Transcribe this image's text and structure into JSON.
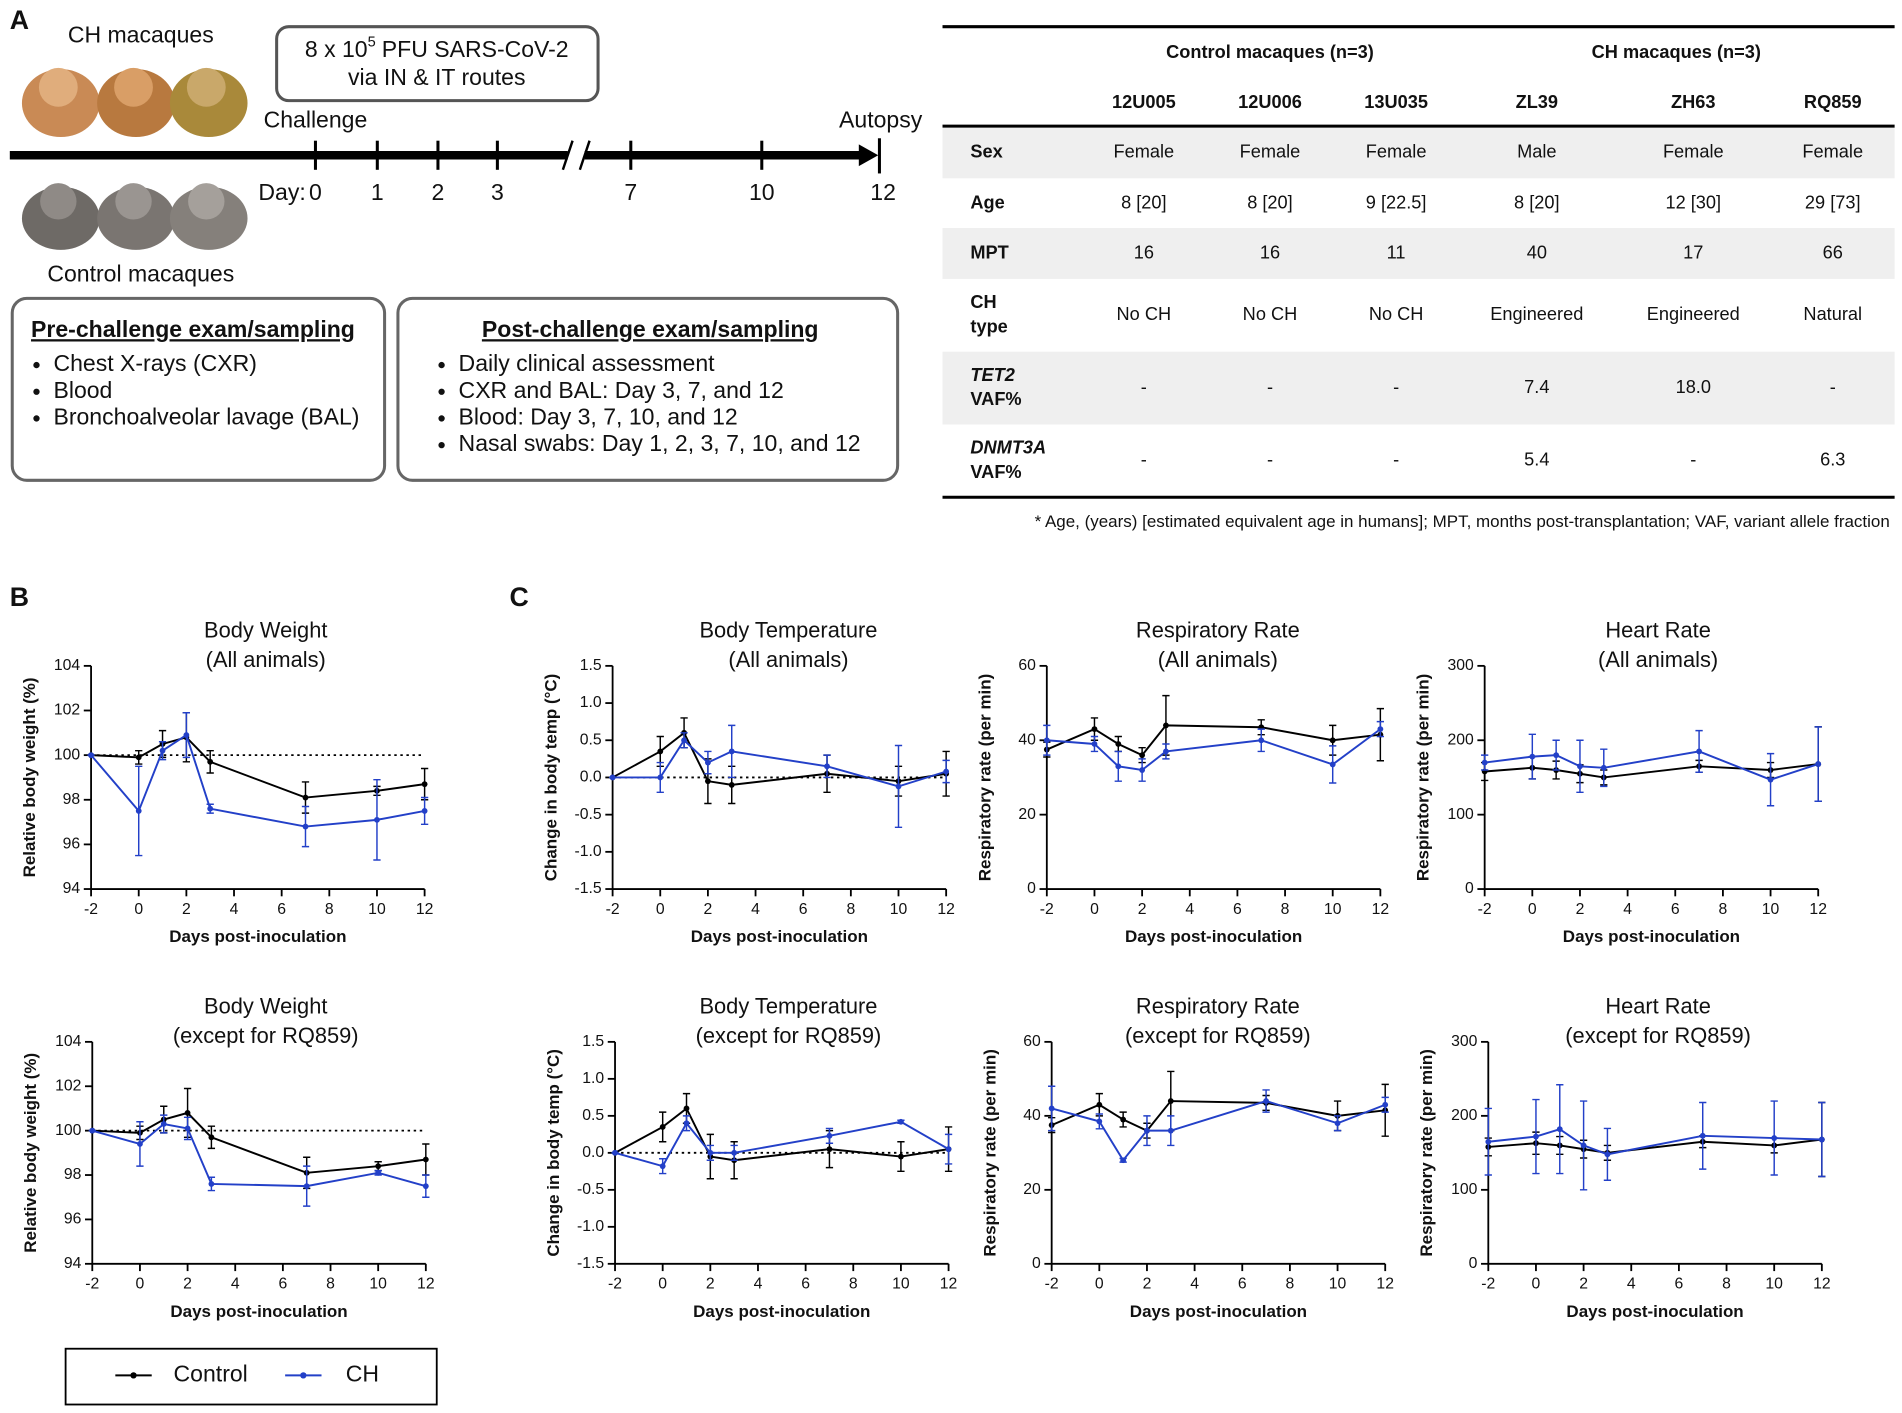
{
  "panels": [
    "A",
    "B",
    "C"
  ],
  "timeline": {
    "ch_group": "CH macaques",
    "control_group": "Control macaques",
    "inoculum": {
      "prefix": "8 x 10",
      "exponent": "5",
      "suffix": "PFU SARS-CoV-2",
      "route": "via IN & IT routes"
    },
    "start_label": "Challenge",
    "end_label": "Autopsy",
    "day_label": "Day:",
    "days": [
      0,
      1,
      2,
      3,
      7,
      10,
      12
    ],
    "pre": {
      "title": "Pre-challenge exam/sampling",
      "items": [
        "Chest X-rays (CXR)",
        "Blood",
        "Bronchoalveolar lavage (BAL)"
      ]
    },
    "post": {
      "title": "Post-challenge exam/sampling",
      "items": [
        "Daily clinical assessment",
        "CXR and BAL: Day 3, 7, and 12",
        "Blood: Day 3, 7, 10, and 12",
        "Nasal swabs: Day 1, 2, 3, 7, 10, and 12"
      ]
    }
  },
  "table": {
    "groups": [
      "Control macaques (n=3)",
      "CH macaques (n=3)"
    ],
    "columns": [
      "12U005",
      "12U006",
      "13U035",
      "ZL39",
      "ZH63",
      "RQ859"
    ],
    "rows": [
      {
        "label": [
          "Sex"
        ],
        "cells": [
          "Female",
          "Female",
          "Female",
          "Male",
          "Female",
          "Female"
        ]
      },
      {
        "label": [
          "Age"
        ],
        "cells": [
          "8 [20]",
          "8 [20]",
          "9 [22.5]",
          "8 [20]",
          "12 [30]",
          "29 [73]"
        ]
      },
      {
        "label": [
          "MPT"
        ],
        "cells": [
          "16",
          "16",
          "11",
          "40",
          "17",
          "66"
        ]
      },
      {
        "label": [
          "CH",
          "type"
        ],
        "cells": [
          "No CH",
          "No CH",
          "No CH",
          "Engineered",
          "Engineered",
          "Natural"
        ]
      },
      {
        "label": [
          "TET2",
          "VAF%"
        ],
        "label_italic": true,
        "cells": [
          "-",
          "-",
          "-",
          "7.4",
          "18.0",
          "-"
        ]
      },
      {
        "label": [
          "DNMT3A",
          "VAF%"
        ],
        "label_italic": true,
        "cells": [
          "-",
          "-",
          "-",
          "5.4",
          "-",
          "6.3"
        ]
      }
    ],
    "footnote": "* Age, (years) [estimated equivalent age in humans]; MPT, months post-transplantation; VAF, variant allele fraction"
  },
  "chart_data": [
    {
      "type": "line",
      "title": "Body Weight",
      "subtitle": "(All animals)",
      "ylabel": "Relative body weight (%)",
      "xlabel": "Days post-inoculation",
      "x": [
        -2,
        0,
        1,
        2,
        3,
        7,
        10,
        12
      ],
      "xlim": [
        -2,
        12
      ],
      "xticks": [
        -2,
        0,
        2,
        4,
        6,
        8,
        10,
        12
      ],
      "ylim": [
        94,
        104
      ],
      "yticks": [
        94,
        96,
        98,
        100,
        102,
        104
      ],
      "reference_line": 100,
      "series": [
        {
          "name": "Control",
          "color": "#000000",
          "values": [
            100,
            99.9,
            100.5,
            100.8,
            99.7,
            98.1,
            98.4,
            98.7
          ],
          "errors": [
            0,
            0.3,
            0.6,
            1.1,
            0.5,
            0.7,
            0.2,
            0.7
          ]
        },
        {
          "name": "CH",
          "color": "#2340c8",
          "values": [
            100,
            97.5,
            100.2,
            100.9,
            97.6,
            96.8,
            97.1,
            97.5
          ],
          "errors": [
            0,
            2.0,
            0.4,
            1.0,
            0.2,
            0.9,
            1.8,
            0.6
          ]
        }
      ]
    },
    {
      "type": "line",
      "title": "Body Temperature",
      "subtitle": "(All animals)",
      "ylabel": "Change in body temp (°C)",
      "xlabel": "Days post-inoculation",
      "x": [
        -2,
        0,
        1,
        2,
        3,
        7,
        10,
        12
      ],
      "xlim": [
        -2,
        12
      ],
      "xticks": [
        -2,
        0,
        2,
        4,
        6,
        8,
        10,
        12
      ],
      "ylim": [
        -1.5,
        1.5
      ],
      "yticks": [
        -1.5,
        {
          "value": -1,
          "label": "-1.0"
        },
        -0.5,
        {
          "value": 0,
          "label": "0.0"
        },
        0.5,
        {
          "value": 1,
          "label": "1.0"
        },
        1.5
      ],
      "reference_line": 0,
      "series": [
        {
          "name": "Control",
          "color": "#000000",
          "values": [
            0,
            0.35,
            0.6,
            -0.05,
            -0.1,
            0.05,
            -0.05,
            0.05
          ],
          "errors": [
            0,
            0.2,
            0.2,
            0.3,
            0.25,
            0.25,
            0.2,
            0.3
          ]
        },
        {
          "name": "CH",
          "color": "#2340c8",
          "values": [
            0,
            0,
            0.5,
            0.2,
            0.35,
            0.15,
            -0.12,
            0.08
          ],
          "errors": [
            0,
            0.2,
            0.1,
            0.15,
            0.35,
            0.15,
            0.55,
            0.15
          ]
        }
      ]
    },
    {
      "type": "line",
      "title": "Respiratory Rate",
      "subtitle": "(All animals)",
      "ylabel": "Respiratory rate (per min)",
      "xlabel": "Days post-inoculation",
      "x": [
        -2,
        0,
        1,
        2,
        3,
        7,
        10,
        12
      ],
      "xlim": [
        -2,
        12
      ],
      "xticks": [
        -2,
        0,
        2,
        4,
        6,
        8,
        10,
        12
      ],
      "ylim": [
        0,
        60
      ],
      "yticks": [
        0,
        20,
        40,
        60
      ],
      "series": [
        {
          "name": "Control",
          "color": "#000000",
          "values": [
            37.5,
            43,
            39,
            36,
            44,
            43.5,
            40,
            41.5
          ],
          "errors": [
            2,
            3,
            2,
            2,
            8,
            2,
            4,
            7
          ]
        },
        {
          "name": "CH",
          "color": "#2340c8",
          "values": [
            40,
            39,
            33,
            32,
            37,
            40,
            33.5,
            43
          ],
          "errors": [
            4,
            2,
            4,
            3,
            2,
            3,
            5,
            2
          ]
        }
      ]
    },
    {
      "type": "line",
      "title": "Heart Rate",
      "subtitle": "(All animals)",
      "ylabel": "Respiratory rate (per min)",
      "xlabel": "Days post-inoculation",
      "x": [
        -2,
        0,
        1,
        2,
        3,
        7,
        10,
        12
      ],
      "xlim": [
        -2,
        12
      ],
      "xticks": [
        -2,
        0,
        2,
        4,
        6,
        8,
        10,
        12
      ],
      "ylim": [
        0,
        300
      ],
      "yticks": [
        0,
        100,
        200,
        300
      ],
      "series": [
        {
          "name": "Control",
          "color": "#000000",
          "values": [
            158,
            163,
            160,
            155,
            150,
            165,
            160,
            168
          ],
          "errors": [
            12,
            15,
            12,
            12,
            10,
            8,
            10,
            50
          ]
        },
        {
          "name": "CH",
          "color": "#2340c8",
          "values": [
            170,
            178,
            180,
            165,
            163,
            185,
            147,
            168
          ],
          "errors": [
            10,
            30,
            20,
            35,
            25,
            28,
            35,
            50
          ]
        }
      ]
    },
    {
      "type": "line",
      "title": "Body Weight",
      "subtitle": "(except for RQ859)",
      "ylabel": "Relative body weight (%)",
      "xlabel": "Days post-inoculation",
      "x": [
        -2,
        0,
        1,
        2,
        3,
        7,
        10,
        12
      ],
      "xlim": [
        -2,
        12
      ],
      "xticks": [
        -2,
        0,
        2,
        4,
        6,
        8,
        10,
        12
      ],
      "ylim": [
        94,
        104
      ],
      "yticks": [
        94,
        96,
        98,
        100,
        102,
        104
      ],
      "reference_line": 100,
      "series": [
        {
          "name": "Control",
          "color": "#000000",
          "values": [
            100,
            99.9,
            100.5,
            100.8,
            99.7,
            98.1,
            98.4,
            98.7
          ],
          "errors": [
            0,
            0.3,
            0.6,
            1.1,
            0.5,
            0.7,
            0.2,
            0.7
          ]
        },
        {
          "name": "CH",
          "color": "#2340c8",
          "values": [
            100,
            99.4,
            100.3,
            100.1,
            97.6,
            97.5,
            98.1,
            97.5
          ],
          "errors": [
            0,
            1.0,
            0.4,
            0.5,
            0.3,
            0.9,
            0.1,
            0.5
          ]
        }
      ]
    },
    {
      "type": "line",
      "title": "Body Temperature",
      "subtitle": "(except for RQ859)",
      "ylabel": "Change in body temp (°C)",
      "xlabel": "Days post-inoculation",
      "x": [
        -2,
        0,
        1,
        2,
        3,
        7,
        10,
        12
      ],
      "xlim": [
        -2,
        12
      ],
      "xticks": [
        -2,
        0,
        2,
        4,
        6,
        8,
        10,
        12
      ],
      "ylim": [
        -1.5,
        1.5
      ],
      "yticks": [
        -1.5,
        {
          "value": -1,
          "label": "-1.0"
        },
        -0.5,
        {
          "value": 0,
          "label": "0.0"
        },
        0.5,
        {
          "value": 1,
          "label": "1.0"
        },
        1.5
      ],
      "reference_line": 0,
      "series": [
        {
          "name": "Control",
          "color": "#000000",
          "values": [
            0,
            0.35,
            0.6,
            -0.05,
            -0.1,
            0.05,
            -0.05,
            0.05
          ],
          "errors": [
            0,
            0.2,
            0.2,
            0.3,
            0.25,
            0.25,
            0.2,
            0.3
          ]
        },
        {
          "name": "CH",
          "color": "#2340c8",
          "values": [
            0,
            -0.18,
            0.4,
            0,
            0,
            0.23,
            0.42,
            0.05
          ],
          "errors": [
            0,
            0.1,
            0.1,
            0.1,
            0.1,
            0.1,
            0.02,
            0.2
          ]
        }
      ]
    },
    {
      "type": "line",
      "title": "Respiratory Rate",
      "subtitle": "(except for RQ859)",
      "ylabel": "Respiratory rate (per min)",
      "xlabel": "Days post-inoculation",
      "x": [
        -2,
        0,
        1,
        2,
        3,
        7,
        10,
        12
      ],
      "xlim": [
        -2,
        12
      ],
      "xticks": [
        -2,
        0,
        2,
        4,
        6,
        8,
        10,
        12
      ],
      "ylim": [
        0,
        60
      ],
      "yticks": [
        0,
        20,
        40,
        60
      ],
      "series": [
        {
          "name": "Control",
          "color": "#000000",
          "values": [
            37.5,
            43,
            39,
            36,
            44,
            43.5,
            40,
            41.5
          ],
          "errors": [
            2,
            3,
            2,
            2,
            8,
            2,
            4,
            7
          ]
        },
        {
          "name": "CH",
          "color": "#2340c8",
          "values": [
            42,
            38.5,
            28,
            36,
            36,
            44,
            38,
            43
          ],
          "errors": [
            6,
            2,
            0.5,
            4,
            4,
            3,
            2,
            2
          ]
        }
      ]
    },
    {
      "type": "line",
      "title": "Heart Rate",
      "subtitle": "(except for RQ859)",
      "ylabel": "Respiratory rate (per min)",
      "xlabel": "Days post-inoculation",
      "x": [
        -2,
        0,
        1,
        2,
        3,
        7,
        10,
        12
      ],
      "xlim": [
        -2,
        12
      ],
      "xticks": [
        -2,
        0,
        2,
        4,
        6,
        8,
        10,
        12
      ],
      "ylim": [
        0,
        300
      ],
      "yticks": [
        0,
        100,
        200,
        300
      ],
      "series": [
        {
          "name": "Control",
          "color": "#000000",
          "values": [
            158,
            163,
            160,
            155,
            150,
            165,
            160,
            168
          ],
          "errors": [
            12,
            15,
            12,
            12,
            10,
            8,
            10,
            50
          ]
        },
        {
          "name": "CH",
          "color": "#2340c8",
          "values": [
            165,
            172,
            182,
            160,
            148,
            173,
            170,
            168
          ],
          "errors": [
            45,
            50,
            60,
            60,
            35,
            45,
            50,
            50
          ]
        }
      ]
    }
  ]
}
